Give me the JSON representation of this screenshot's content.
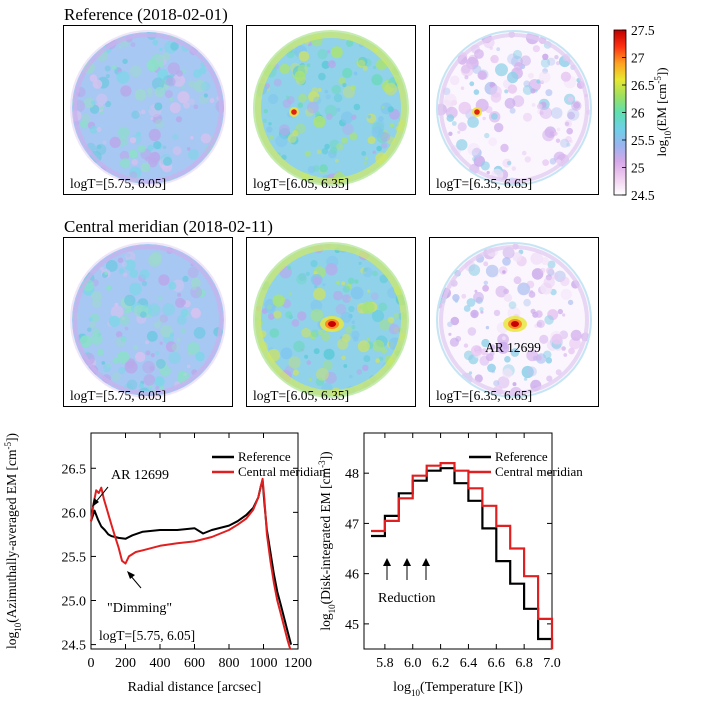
{
  "rows": [
    {
      "title": "Reference (2018-02-01)",
      "panels": [
        {
          "label": "logT=[5.75, 6.05]",
          "variant": "cool",
          "spot": null
        },
        {
          "label": "logT=[6.05, 6.35]",
          "variant": "warm",
          "spot": "small"
        },
        {
          "label": "logT=[6.35, 6.65]",
          "variant": "hot",
          "spot": "small"
        }
      ]
    },
    {
      "title": "Central meridian (2018-02-11)",
      "panels": [
        {
          "label": "logT=[5.75, 6.05]",
          "variant": "cool",
          "spot": null
        },
        {
          "label": "logT=[6.05, 6.35]",
          "variant": "warm",
          "spot": "big"
        },
        {
          "label": "logT=[6.35, 6.65]",
          "variant": "hot",
          "spot": "big",
          "annotation": "AR 12699"
        }
      ]
    }
  ],
  "colorbar": {
    "label": "log10(EM [cm-5])",
    "ticks": [
      "27.5",
      "27",
      "26.5",
      "26",
      "25.5",
      "25",
      "24.5"
    ],
    "colors": [
      "#ffffff",
      "#f0d0f0",
      "#d8a8e8",
      "#9ab4f0",
      "#6fd0e8",
      "#5ee0b0",
      "#9ee060",
      "#e8e830",
      "#ffa020",
      "#ff3010",
      "#c00000"
    ]
  },
  "chart_data": [
    {
      "type": "line",
      "xlabel": "Radial distance [arcsec]",
      "ylabel": "log10(Azimuthally-averaged EM [cm-5])",
      "xlim": [
        0,
        1200
      ],
      "ylim": [
        24.45,
        26.9
      ],
      "xticks": [
        "0",
        "200",
        "400",
        "600",
        "800",
        "1000",
        "1200"
      ],
      "yticks": [
        "24.5",
        "25.0",
        "25.5",
        "26.0",
        "26.5"
      ],
      "series": [
        {
          "name": "Reference",
          "color": "#000000",
          "x": [
            0,
            20,
            40,
            60,
            80,
            100,
            120,
            140,
            160,
            200,
            240,
            300,
            400,
            500,
            600,
            650,
            700,
            800,
            850,
            900,
            940,
            970,
            985,
            995,
            1005,
            1020,
            1040,
            1060,
            1080,
            1100,
            1120,
            1140,
            1160
          ],
          "y": [
            25.9,
            26.02,
            25.92,
            25.84,
            25.8,
            25.75,
            25.73,
            25.72,
            25.71,
            25.7,
            25.74,
            25.78,
            25.8,
            25.8,
            25.82,
            25.76,
            25.8,
            25.85,
            25.9,
            25.97,
            26.05,
            26.17,
            26.3,
            26.36,
            26.1,
            25.8,
            25.55,
            25.3,
            25.1,
            24.95,
            24.8,
            24.65,
            24.5
          ]
        },
        {
          "name": "Central meridian",
          "color": "#e02020",
          "x": [
            0,
            15,
            30,
            45,
            60,
            75,
            90,
            105,
            120,
            140,
            160,
            180,
            200,
            220,
            260,
            300,
            400,
            500,
            600,
            700,
            800,
            850,
            900,
            940,
            970,
            985,
            995,
            1005,
            1020,
            1040,
            1060,
            1080,
            1100,
            1120,
            1140,
            1155
          ],
          "y": [
            25.9,
            26.1,
            26.25,
            26.22,
            26.28,
            26.15,
            26.05,
            25.95,
            25.85,
            25.72,
            25.6,
            25.45,
            25.42,
            25.5,
            25.55,
            25.57,
            25.62,
            25.65,
            25.67,
            25.72,
            25.8,
            25.86,
            25.93,
            26.03,
            26.17,
            26.3,
            26.38,
            26.15,
            25.75,
            25.45,
            25.2,
            25.0,
            24.85,
            24.7,
            24.55,
            24.45
          ]
        }
      ],
      "legend": [
        "Reference",
        "Central meridian"
      ],
      "annotations": [
        "AR 12699",
        "\"Dimming\"",
        "logT=[5.75, 6.05]"
      ]
    },
    {
      "type": "line",
      "style": "step",
      "xlabel": "log10(Temperature [K])",
      "ylabel": "log10(Disk-integrated EM [cm-3])",
      "xlim": [
        5.65,
        7.0
      ],
      "ylim": [
        44.5,
        48.8
      ],
      "xticks": [
        "5.8",
        "6.0",
        "6.2",
        "6.4",
        "6.6",
        "6.8",
        "7.0"
      ],
      "yticks": [
        "45",
        "46",
        "47",
        "48"
      ],
      "bin_edges": [
        5.7,
        5.8,
        5.9,
        6.0,
        6.1,
        6.2,
        6.3,
        6.4,
        6.5,
        6.6,
        6.7,
        6.8,
        6.9,
        7.0
      ],
      "series": [
        {
          "name": "Reference",
          "color": "#000000",
          "values": [
            46.75,
            47.15,
            47.6,
            47.85,
            48.05,
            48.1,
            47.8,
            47.45,
            46.9,
            46.25,
            45.8,
            45.3,
            44.7
          ]
        },
        {
          "name": "Central meridian",
          "color": "#e02020",
          "values": [
            46.85,
            47.05,
            47.5,
            47.95,
            48.15,
            48.2,
            48.05,
            47.7,
            47.35,
            46.95,
            46.5,
            45.95,
            45.1
          ]
        }
      ],
      "legend": [
        "Reference",
        "Central meridian"
      ],
      "annotations": [
        "Reduction"
      ]
    }
  ]
}
